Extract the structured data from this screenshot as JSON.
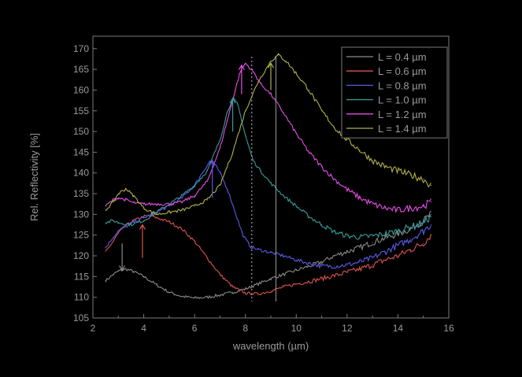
{
  "chart_data": {
    "type": "line",
    "title": "",
    "xlabel": "wavelength (µm)",
    "ylabel": "Rel. Reflectivity [%]",
    "xlim": [
      2,
      16
    ],
    "ylim": [
      105,
      173
    ],
    "xticks": [
      2,
      4,
      6,
      8,
      10,
      12,
      14,
      16
    ],
    "yticks": [
      105,
      110,
      115,
      120,
      125,
      130,
      135,
      140,
      145,
      150,
      155,
      160,
      165,
      170
    ],
    "grid": false,
    "legend_position": "top-right",
    "series": [
      {
        "name": "L = 0.4 µm",
        "color": "#8a8a8a",
        "x": [
          2.5,
          2.8,
          3.0,
          3.3,
          3.6,
          4.0,
          4.5,
          5.0,
          5.5,
          6.0,
          6.5,
          7.0,
          7.5,
          8.0,
          8.5,
          9.0,
          9.5,
          10.0,
          10.5,
          11.0,
          11.5,
          12.0,
          12.5,
          13.0,
          13.5,
          14.0,
          14.5,
          15.0,
          15.3
        ],
        "y": [
          114,
          115.5,
          116.3,
          116.8,
          116.2,
          115.0,
          113.0,
          111.2,
          110.2,
          109.8,
          110.0,
          110.5,
          111.2,
          112.0,
          113.2,
          114.5,
          115.5,
          116.5,
          117.5,
          118.5,
          120.0,
          121.0,
          122.0,
          123.2,
          124.3,
          125.3,
          126.5,
          128.5,
          130.0
        ]
      },
      {
        "name": "L = 0.6 µm",
        "color": "#d9534f",
        "x": [
          2.5,
          2.8,
          3.0,
          3.3,
          3.6,
          4.0,
          4.3,
          4.6,
          5.0,
          5.5,
          6.0,
          6.5,
          7.0,
          7.5,
          8.0,
          8.5,
          9.0,
          9.5,
          10.0,
          10.5,
          11.0,
          11.5,
          12.0,
          12.5,
          13.0,
          13.5,
          14.0,
          14.5,
          15.0,
          15.3
        ],
        "y": [
          121,
          123.5,
          125.5,
          127.3,
          128.5,
          129.5,
          129.6,
          129.0,
          128.2,
          126.5,
          123.5,
          119.5,
          115.5,
          112.5,
          111.0,
          110.8,
          111.5,
          112.5,
          113.2,
          113.8,
          114.5,
          115.2,
          116.0,
          116.8,
          117.8,
          119.0,
          120.0,
          121.5,
          123.0,
          125.0
        ]
      },
      {
        "name": "L = 0.8 µm",
        "color": "#5a5ae6",
        "x": [
          2.5,
          2.8,
          3.0,
          3.5,
          4.0,
          4.5,
          5.0,
          5.5,
          6.0,
          6.3,
          6.6,
          6.8,
          7.0,
          7.3,
          7.6,
          7.9,
          8.2,
          8.5,
          9.0,
          9.5,
          10.0,
          10.5,
          11.0,
          11.5,
          12.0,
          12.5,
          13.0,
          13.5,
          14.0,
          14.5,
          15.0,
          15.3
        ],
        "y": [
          122,
          124.5,
          126.0,
          127.8,
          129.2,
          130.5,
          132.0,
          134.0,
          137.0,
          140.0,
          142.8,
          142.0,
          140.0,
          136.0,
          130.5,
          125.0,
          122.2,
          121.5,
          120.8,
          120.0,
          119.0,
          118.2,
          117.5,
          117.5,
          117.8,
          118.5,
          119.5,
          121.0,
          122.5,
          124.0,
          126.0,
          127.5
        ]
      },
      {
        "name": "L = 1.0 µm",
        "color": "#3a9a9a",
        "x": [
          2.5,
          2.8,
          3.0,
          3.5,
          4.0,
          4.5,
          5.0,
          5.5,
          6.0,
          6.5,
          7.0,
          7.3,
          7.5,
          7.7,
          8.0,
          8.3,
          8.6,
          9.0,
          9.5,
          10.0,
          10.5,
          11.0,
          11.5,
          12.0,
          12.5,
          13.0,
          13.5,
          14.0,
          14.5,
          15.0,
          15.3
        ],
        "y": [
          128,
          128.5,
          128.0,
          127.5,
          128.5,
          130.5,
          132.5,
          134.5,
          137.0,
          140.5,
          148.0,
          155.0,
          158.0,
          156.5,
          149.0,
          143.0,
          140.5,
          137.5,
          134.5,
          132.0,
          129.5,
          127.5,
          125.8,
          124.8,
          124.5,
          124.8,
          125.3,
          126.0,
          127.0,
          128.0,
          129.5
        ]
      },
      {
        "name": "L = 1.2 µm",
        "color": "#e64de6",
        "x": [
          2.5,
          2.8,
          3.0,
          3.3,
          3.6,
          4.0,
          4.5,
          5.0,
          5.5,
          6.0,
          6.5,
          7.0,
          7.3,
          7.6,
          7.8,
          8.0,
          8.3,
          8.6,
          9.0,
          9.5,
          10.0,
          10.5,
          11.0,
          11.5,
          12.0,
          12.5,
          13.0,
          13.5,
          14.0,
          14.5,
          15.0,
          15.3
        ],
        "y": [
          132,
          133.5,
          134.0,
          133.5,
          132.8,
          132.5,
          132.5,
          132.5,
          133.0,
          134.5,
          138.0,
          146.0,
          153.0,
          160.0,
          164.5,
          166.5,
          164.5,
          161.5,
          159.0,
          154.5,
          149.5,
          145.0,
          141.5,
          138.5,
          136.0,
          134.0,
          132.5,
          131.5,
          131.0,
          131.5,
          132.0,
          133.0
        ]
      },
      {
        "name": "L = 1.4 µm",
        "color": "#b0b04a",
        "x": [
          2.5,
          2.8,
          3.0,
          3.3,
          3.6,
          4.0,
          4.5,
          5.0,
          5.5,
          6.0,
          6.5,
          7.0,
          7.5,
          8.0,
          8.5,
          9.0,
          9.3,
          9.6,
          10.0,
          10.5,
          11.0,
          11.5,
          12.0,
          12.5,
          13.0,
          13.5,
          14.0,
          14.5,
          15.0,
          15.3
        ],
        "y": [
          131,
          133.0,
          135.0,
          136.2,
          134.5,
          131.5,
          130.0,
          130.5,
          131.0,
          132.0,
          133.5,
          137.0,
          145.0,
          155.0,
          162.0,
          167.0,
          168.5,
          167.0,
          164.0,
          160.0,
          155.0,
          151.0,
          148.0,
          145.5,
          143.0,
          141.5,
          140.5,
          139.5,
          138.5,
          137.0
        ]
      }
    ],
    "annotations": [
      {
        "type": "vline",
        "x": 8.25,
        "style": "dotted",
        "color": "#bbbbbb"
      },
      {
        "type": "vline",
        "x": 9.2,
        "style": "solid",
        "color": "#9a9a9a"
      },
      {
        "type": "arrow",
        "x": 3.15,
        "y_from": 123,
        "y_to": 116.5,
        "color": "#8a8a8a"
      },
      {
        "type": "arrow",
        "x": 3.95,
        "y_from": 119.5,
        "y_to": 127.5,
        "color": "#d9534f"
      },
      {
        "type": "arrow",
        "x": 6.7,
        "y_from": 134,
        "y_to": 143,
        "color": "#5a5ae6"
      },
      {
        "type": "arrow",
        "x": 7.5,
        "y_from": 150,
        "y_to": 158,
        "color": "#3a9a9a"
      },
      {
        "type": "arrow",
        "x": 7.85,
        "y_from": 159,
        "y_to": 166,
        "color": "#e64de6"
      },
      {
        "type": "arrow",
        "x": 9.0,
        "y_from": 160,
        "y_to": 166.5,
        "color": "#b0b04a"
      }
    ]
  }
}
